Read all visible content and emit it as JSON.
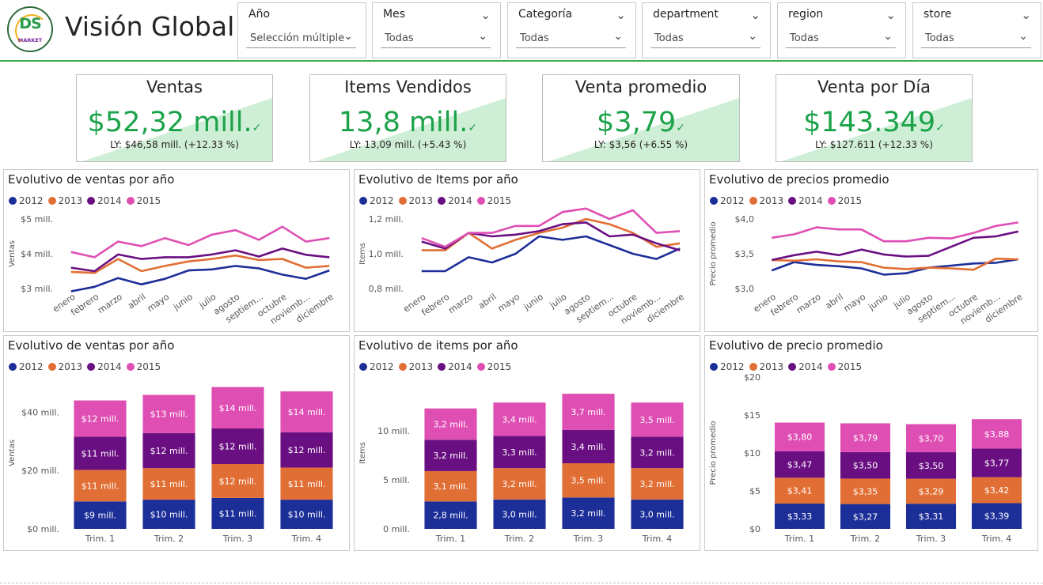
{
  "header": {
    "title": "Visión Global",
    "logo": {
      "big": "DS",
      "small": "MARKET"
    }
  },
  "slicers": [
    {
      "label": "Año",
      "value": "Selección múltiple",
      "icon": "chevron-down-icon"
    },
    {
      "label": "Mes",
      "value": "Todas",
      "icon": "chevron-down-icon"
    },
    {
      "label": "Categoría",
      "value": "Todas",
      "icon": "chevron-down-icon"
    },
    {
      "label": "department",
      "value": "Todas",
      "icon": "chevron-down-icon"
    },
    {
      "label": "region",
      "value": "Todas",
      "icon": "chevron-down-icon"
    },
    {
      "label": "store",
      "value": "Todas",
      "icon": "chevron-down-icon"
    }
  ],
  "kpis": [
    {
      "title": "Ventas",
      "value": "$52,32 mill.",
      "ly": "LY: $46,58 mill. (+12.33 %)",
      "icon": "checkmark-icon"
    },
    {
      "title": "Items Vendidos",
      "value": "13,8 mill.",
      "ly": "LY: 13,09 mill. (+5.43 %)",
      "icon": "checkmark-icon"
    },
    {
      "title": "Venta promedio",
      "value": "$3,79",
      "ly": "LY: $3,56 (+6.55 %)",
      "icon": "checkmark-icon"
    },
    {
      "title": "Venta por Día",
      "value": "$143.349",
      "ly": "LY: $127.611 (+12.33 %)",
      "icon": "checkmark-icon"
    }
  ],
  "colors": {
    "2012": "#1c2e98",
    "2013": "#e16f35",
    "2014": "#6a0f82",
    "2015": "#df4fb3",
    "accent": "#1ca34a",
    "kpi_bg": "#cfeed6"
  },
  "legend": [
    "2012",
    "2013",
    "2014",
    "2015"
  ],
  "chart_data": [
    {
      "type": "line",
      "title": "Evolutivo de ventas por año",
      "ylabel": "Ventas",
      "categories": [
        "enero",
        "febrero",
        "marzo",
        "abril",
        "mayo",
        "junio",
        "julio",
        "agosto",
        "septiem...",
        "octubre",
        "noviemb...",
        "diciembre"
      ],
      "ylim": [
        3.0,
        5.0
      ],
      "yticks": [
        3.0,
        4.0,
        5.0
      ],
      "ytick_labels": [
        "$3 mill.",
        "$4 mill.",
        "$5 mill."
      ],
      "series": [
        {
          "name": "2012",
          "values": [
            2.92,
            3.05,
            3.3,
            3.12,
            3.28,
            3.52,
            3.55,
            3.65,
            3.58,
            3.4,
            3.28,
            3.52
          ]
        },
        {
          "name": "2013",
          "values": [
            3.48,
            3.45,
            3.85,
            3.5,
            3.65,
            3.78,
            3.85,
            3.95,
            3.82,
            3.85,
            3.6,
            3.65
          ]
        },
        {
          "name": "2014",
          "values": [
            3.6,
            3.5,
            3.98,
            3.85,
            3.9,
            3.9,
            3.98,
            4.1,
            3.92,
            4.15,
            3.97,
            3.9
          ]
        },
        {
          "name": "2015",
          "values": [
            4.05,
            3.9,
            4.35,
            4.22,
            4.45,
            4.25,
            4.55,
            4.68,
            4.4,
            4.78,
            4.35,
            4.45
          ]
        }
      ]
    },
    {
      "type": "line",
      "title": "Evolutivo de Items por año",
      "ylabel": "Items",
      "categories": [
        "enero",
        "febrero",
        "marzo",
        "abril",
        "mayo",
        "junio",
        "julio",
        "agosto",
        "septiem...",
        "octubre",
        "noviemb...",
        "diciembre"
      ],
      "ylim": [
        0.8,
        1.2
      ],
      "yticks": [
        0.8,
        1.0,
        1.2
      ],
      "ytick_labels": [
        "0,8 mill.",
        "1,0 mill.",
        "1,2 mill."
      ],
      "series": [
        {
          "name": "2012",
          "values": [
            0.9,
            0.9,
            0.98,
            0.95,
            1.0,
            1.1,
            1.08,
            1.1,
            1.05,
            1.0,
            0.97,
            1.03
          ]
        },
        {
          "name": "2013",
          "values": [
            1.02,
            1.02,
            1.12,
            1.03,
            1.08,
            1.12,
            1.15,
            1.2,
            1.17,
            1.12,
            1.04,
            1.06
          ]
        },
        {
          "name": "2014",
          "values": [
            1.07,
            1.03,
            1.12,
            1.1,
            1.11,
            1.13,
            1.17,
            1.18,
            1.1,
            1.11,
            1.06,
            1.02
          ]
        },
        {
          "name": "2015",
          "values": [
            1.09,
            1.04,
            1.12,
            1.12,
            1.16,
            1.16,
            1.24,
            1.26,
            1.2,
            1.25,
            1.12,
            1.13
          ]
        }
      ]
    },
    {
      "type": "line",
      "title": "Evolutivo de precios promedio",
      "ylabel": "Precio promedio",
      "categories": [
        "enero",
        "febrero",
        "marzo",
        "abril",
        "mayo",
        "junio",
        "julio",
        "agosto",
        "septiem...",
        "octubre",
        "noviemb...",
        "diciembre"
      ],
      "ylim": [
        3.0,
        4.0
      ],
      "yticks": [
        3.0,
        3.5,
        4.0
      ],
      "ytick_labels": [
        "$3,0",
        "$3,5",
        "$4,0"
      ],
      "series": [
        {
          "name": "2012",
          "values": [
            3.26,
            3.38,
            3.34,
            3.32,
            3.29,
            3.2,
            3.22,
            3.3,
            3.33,
            3.36,
            3.37,
            3.42
          ]
        },
        {
          "name": "2013",
          "values": [
            3.41,
            3.4,
            3.42,
            3.39,
            3.38,
            3.3,
            3.28,
            3.3,
            3.29,
            3.27,
            3.43,
            3.42
          ]
        },
        {
          "name": "2014",
          "values": [
            3.41,
            3.48,
            3.53,
            3.48,
            3.56,
            3.49,
            3.46,
            3.47,
            3.6,
            3.73,
            3.75,
            3.82
          ]
        },
        {
          "name": "2015",
          "values": [
            3.73,
            3.78,
            3.88,
            3.85,
            3.85,
            3.68,
            3.68,
            3.73,
            3.72,
            3.8,
            3.9,
            3.95
          ]
        }
      ]
    },
    {
      "type": "bar",
      "title": "Evolutivo de ventas por año",
      "ylabel": "Ventas",
      "categories": [
        "Trim. 1",
        "Trim. 2",
        "Trim. 3",
        "Trim. 4"
      ],
      "ylim": [
        0,
        52
      ],
      "yticks": [
        0,
        20,
        40
      ],
      "ytick_labels": [
        "$0 mill.",
        "$20 mill.",
        "$40 mill."
      ],
      "series": [
        {
          "name": "2012",
          "values": [
            9.4,
            10,
            10.6,
            10
          ],
          "labels": [
            "$9 mill.",
            "$10 mill.",
            "$11 mill.",
            "$10 mill."
          ]
        },
        {
          "name": "2013",
          "values": [
            10.8,
            10.8,
            11.6,
            11
          ],
          "labels": [
            "$11 mill.",
            "$11 mill.",
            "$12 mill.",
            "$11 mill."
          ]
        },
        {
          "name": "2014",
          "values": [
            11.4,
            12,
            12.2,
            12.1
          ],
          "labels": [
            "$11 mill.",
            "$12 mill.",
            "$12 mill.",
            "$12 mill."
          ]
        },
        {
          "name": "2015",
          "values": [
            12.4,
            13.1,
            14.2,
            14
          ],
          "labels": [
            "$12 mill.",
            "$13 mill.",
            "$14 mill.",
            "$14 mill."
          ]
        }
      ]
    },
    {
      "type": "bar",
      "title": "Evolutivo de items por año",
      "ylabel": "Items",
      "categories": [
        "Trim. 1",
        "Trim. 2",
        "Trim. 3",
        "Trim. 4"
      ],
      "ylim": [
        0,
        15.5
      ],
      "yticks": [
        0,
        5,
        10
      ],
      "ytick_labels": [
        "0 mill.",
        "5 mill.",
        "10 mill."
      ],
      "series": [
        {
          "name": "2012",
          "values": [
            2.8,
            3.0,
            3.2,
            3.0
          ],
          "labels": [
            "2,8 mill.",
            "3,0 mill.",
            "3,2 mill.",
            "3,0 mill."
          ]
        },
        {
          "name": "2013",
          "values": [
            3.1,
            3.2,
            3.5,
            3.2
          ],
          "labels": [
            "3,1 mill.",
            "3,2 mill.",
            "3,5 mill.",
            "3,2 mill."
          ]
        },
        {
          "name": "2014",
          "values": [
            3.2,
            3.3,
            3.4,
            3.2
          ],
          "labels": [
            "3,2 mill.",
            "3,3 mill.",
            "3,4 mill.",
            "3,2 mill."
          ]
        },
        {
          "name": "2015",
          "values": [
            3.2,
            3.4,
            3.7,
            3.5
          ],
          "labels": [
            "3,2 mill.",
            "3,4 mill.",
            "3,7 mill.",
            "3,5 mill."
          ]
        }
      ]
    },
    {
      "type": "bar",
      "title": "Evolutivo de precio promedio",
      "ylabel": "Precio promedio",
      "categories": [
        "Trim. 1",
        "Trim. 2",
        "Trim. 3",
        "Trim. 4"
      ],
      "ylim": [
        0,
        20
      ],
      "yticks": [
        0,
        5,
        10,
        15,
        20
      ],
      "ytick_labels": [
        "$0",
        "$5",
        "$10",
        "$15",
        "$20"
      ],
      "series": [
        {
          "name": "2012",
          "values": [
            3.33,
            3.27,
            3.31,
            3.39
          ],
          "labels": [
            "$3,33",
            "$3,27",
            "$3,31",
            "$3,39"
          ]
        },
        {
          "name": "2013",
          "values": [
            3.41,
            3.35,
            3.29,
            3.42
          ],
          "labels": [
            "$3,41",
            "$3,35",
            "$3,29",
            "$3,42"
          ]
        },
        {
          "name": "2014",
          "values": [
            3.47,
            3.5,
            3.5,
            3.77
          ],
          "labels": [
            "$3,47",
            "$3,50",
            "$3,50",
            "$3,77"
          ]
        },
        {
          "name": "2015",
          "values": [
            3.8,
            3.79,
            3.7,
            3.88
          ],
          "labels": [
            "$3,80",
            "$3,79",
            "$3,70",
            "$3,88"
          ]
        }
      ]
    }
  ]
}
